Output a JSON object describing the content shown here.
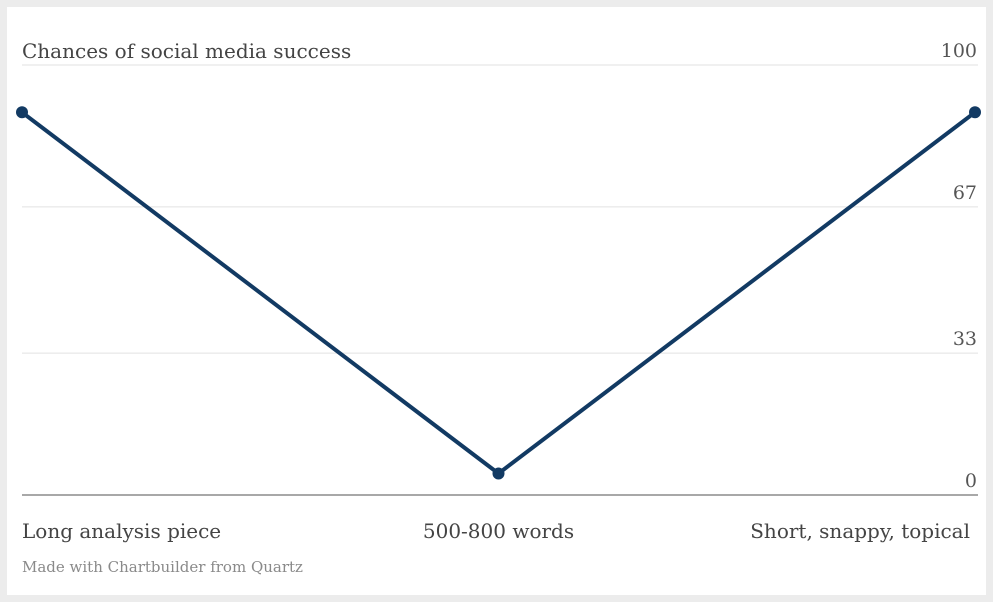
{
  "chart_data": {
    "type": "line",
    "title": "Chances of social media success",
    "credit": "Made with Chartbuilder from Quartz",
    "categories": [
      "Long analysis piece",
      "500-800 words",
      "Short, snappy, topical"
    ],
    "series": [
      {
        "values": [
          89,
          5,
          89
        ],
        "color": "#123a63"
      }
    ],
    "y_ticks": [
      {
        "value": 100,
        "label": "100"
      },
      {
        "value": 67,
        "label": "67"
      },
      {
        "value": 33,
        "label": "33"
      },
      {
        "value": 0,
        "label": "0"
      }
    ],
    "ylim": [
      0,
      100
    ],
    "grid": true,
    "y_axis_side": "right",
    "legend": "none"
  }
}
